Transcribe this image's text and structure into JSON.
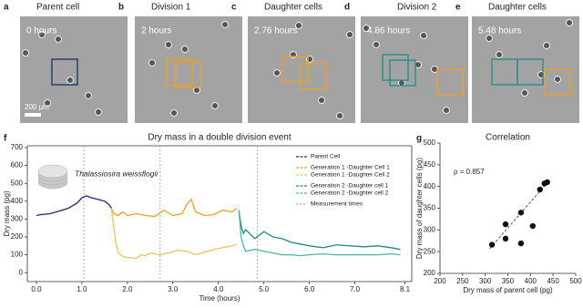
{
  "panels": [
    {
      "label": "a",
      "title": "Parent cell",
      "time": "0 hours"
    },
    {
      "label": "b",
      "title": "Division 1",
      "time": "2 hours"
    },
    {
      "label": "c",
      "title": "Daughter cells",
      "time": "2.76 hours"
    },
    {
      "label": "d",
      "title": "Division 2",
      "time": "4.86 hours"
    },
    {
      "label": "e",
      "title": "Daughter cells",
      "time": "5.48 hours"
    }
  ],
  "scale_bar": "200 µm",
  "chart_data": [
    {
      "type": "line",
      "label": "f",
      "title": "Dry mass in a double division event",
      "x_label": "Time (hours)",
      "y_label": "Dry mass (pg)",
      "inset_label": "Thalassiosira weissflogii",
      "xlim": [
        -0.2,
        8.25
      ],
      "ylim": [
        -50,
        710
      ],
      "xticks": [
        {
          "value": 0,
          "label": "0.0"
        },
        {
          "value": 1,
          "label": "1.0"
        },
        {
          "value": 2,
          "label": "2.0"
        },
        {
          "value": 3,
          "label": "3.0"
        },
        {
          "value": 4,
          "label": "4.0"
        },
        {
          "value": 5,
          "label": "5.0"
        },
        {
          "value": 6,
          "label": "6.0"
        },
        {
          "value": 7,
          "label": "7.0"
        },
        8.1
      ],
      "yticks": [
        0,
        100,
        200,
        300,
        400,
        500,
        600,
        700
      ],
      "measurement_times": [
        1.04,
        2.72,
        4.86
      ],
      "measurement_label": "Measurement times",
      "measurement_color": "#999999",
      "series": [
        {
          "name": "Parent Cell",
          "color": "#1b2a6b",
          "x": [
            0,
            0.1,
            0.3,
            0.5,
            0.7,
            0.9,
            1.0,
            1.1,
            1.2,
            1.35,
            1.5,
            1.6,
            1.65
          ],
          "values": [
            320,
            325,
            330,
            345,
            360,
            390,
            420,
            430,
            420,
            410,
            400,
            380,
            360
          ]
        },
        {
          "name": "Generation 1 -Daughter Cell 1",
          "color": "#f0a020",
          "x": [
            1.65,
            1.7,
            1.8,
            1.9,
            2.0,
            2.2,
            2.4,
            2.6,
            2.7,
            2.8,
            3.0,
            3.2,
            3.3,
            3.4,
            3.5,
            3.7,
            3.9,
            4.1,
            4.3,
            4.4
          ],
          "values": [
            360,
            330,
            320,
            340,
            320,
            330,
            320,
            315,
            330,
            350,
            320,
            330,
            380,
            410,
            340,
            320,
            325,
            350,
            340,
            360
          ]
        },
        {
          "name": "Generation 1 -Daughter Cell 2",
          "color": "#f5c060",
          "x": [
            1.65,
            1.7,
            1.75,
            1.8,
            1.9,
            2.0,
            2.2,
            2.3,
            2.4,
            2.5,
            2.7,
            2.9,
            3.1,
            3.3,
            3.5,
            3.7,
            3.9,
            4.1,
            4.3,
            4.4
          ],
          "values": [
            360,
            250,
            160,
            110,
            90,
            85,
            80,
            100,
            95,
            110,
            100,
            110,
            125,
            120,
            100,
            115,
            130,
            140,
            150,
            160
          ]
        },
        {
          "name": "Generation 2 -Daughter cell 1",
          "color": "#1a8f82",
          "x": [
            4.45,
            4.5,
            4.55,
            4.6,
            4.8,
            5.0,
            5.2,
            5.4,
            5.6,
            5.8,
            6.0,
            6.3,
            6.6,
            6.9,
            7.2,
            7.5,
            7.8,
            8.0
          ],
          "values": [
            350,
            260,
            220,
            240,
            190,
            230,
            200,
            190,
            170,
            160,
            150,
            140,
            155,
            150,
            145,
            150,
            140,
            130
          ]
        },
        {
          "name": "Generation 2 -Daughter cell 2",
          "color": "#45b8a8",
          "x": [
            4.45,
            4.5,
            4.55,
            4.6,
            4.8,
            5.0,
            5.2,
            5.4,
            5.6,
            5.8,
            6.0,
            6.3,
            6.6,
            6.9,
            7.2,
            7.5,
            7.8,
            8.0
          ],
          "values": [
            350,
            200,
            150,
            120,
            130,
            120,
            110,
            100,
            100,
            95,
            100,
            105,
            100,
            100,
            100,
            100,
            105,
            100
          ]
        }
      ]
    },
    {
      "type": "scatter",
      "label": "g",
      "title": "Correlation",
      "x_label": "Dry mass of parent cell (pg)",
      "y_label": "Dry mass of daughter cells (pg)",
      "annotation": "ρ = 0.857",
      "color": "#111111",
      "xlim": [
        200,
        500
      ],
      "ylim": [
        200,
        500
      ],
      "xticks": [
        200,
        250,
        300,
        350,
        400,
        450,
        500
      ],
      "yticks": [
        200,
        250,
        300,
        350,
        400,
        450,
        500
      ],
      "x": [
        315,
        345,
        345,
        379,
        379,
        405,
        421,
        431,
        437
      ],
      "values": [
        266,
        313,
        280,
        340,
        269,
        309,
        393,
        407,
        410
      ],
      "fit_line": {
        "x": [
          310,
          440
        ],
        "y": [
          257,
          412
        ]
      }
    }
  ]
}
